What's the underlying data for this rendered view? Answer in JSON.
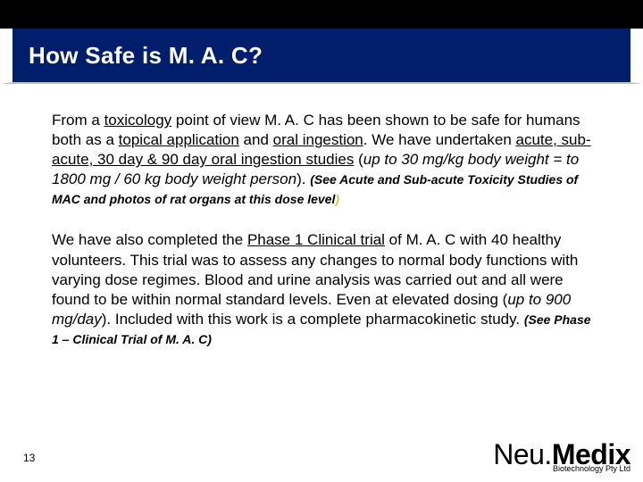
{
  "title": "How Safe is M. A. C?",
  "p1": {
    "t1": "From a ",
    "u1": "toxicology",
    "t2": " point of view M. A. C has been shown to be safe for humans both as a ",
    "u2": "topical application",
    "t3": " and ",
    "u3": "oral ingestion",
    "t4": ". We have undertaken ",
    "u4": "acute, sub-acute, 30 day & 90 day oral ingestion studies",
    "t5": " (",
    "i1": "up to 30 mg/kg body weight = to 1800 mg / 60 kg body weight person",
    "t6": "). ",
    "s1": "(See Acute and Sub-acute Toxicity Studies of MAC and ",
    "s2": "photos of rat organs at this dose level",
    "s3": ")"
  },
  "p2": {
    "t1": "We have also completed the ",
    "u1": "Phase 1 Clinical trial",
    "t2": " of M. A. C with 40 healthy volunteers. This trial was to assess any changes to normal body functions with varying dose regimes. Blood and urine analysis was carried out and all were found to be within normal standard levels.  Even at elevated dosing (",
    "i1": "up to 900 mg/day",
    "t3": "). Included with this work is a complete pharmacokinetic study. ",
    "s1": "(See Phase 1 – Clinical Trial of M. A. C)"
  },
  "pageNum": "13",
  "logo": {
    "neu": "Neu.",
    "medix": "Medix",
    "sub": "Biotechnology Pty Ltd"
  }
}
